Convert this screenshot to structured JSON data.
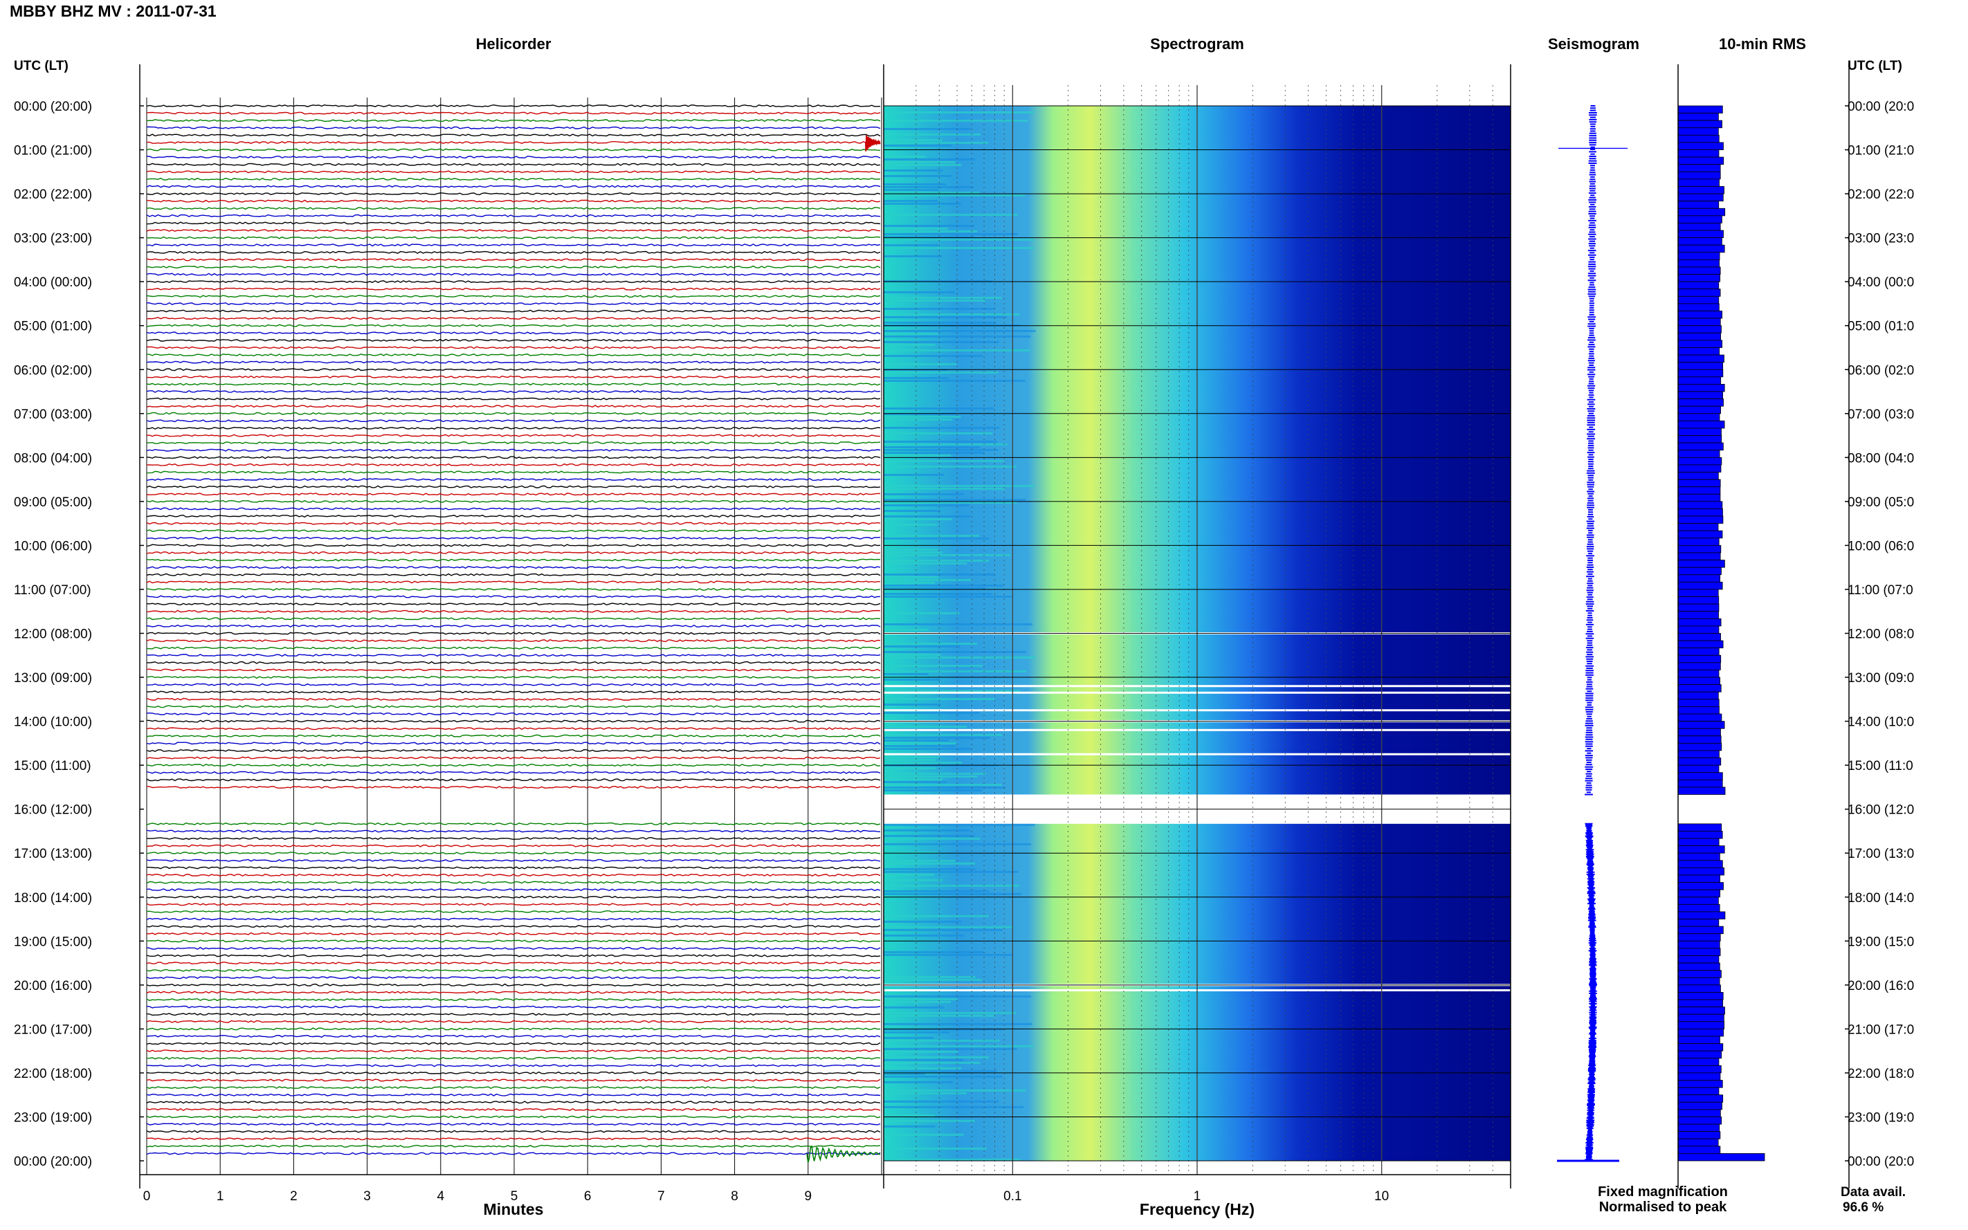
{
  "title": "MBBY BHZ MV : 2011-07-31",
  "panels": {
    "helicorder": "Helicorder",
    "spectrogram": "Spectrogram",
    "seismogram": "Seismogram",
    "rms": "10-min RMS"
  },
  "left_axis_label": "UTC (LT)",
  "right_axis_label": "UTC (LT)",
  "time_labels_left": [
    "00:00 (20:00)",
    "01:00 (21:00)",
    "02:00 (22:00)",
    "03:00 (23:00)",
    "04:00 (00:00)",
    "05:00 (01:00)",
    "06:00 (02:00)",
    "07:00 (03:00)",
    "08:00 (04:00)",
    "09:00 (05:00)",
    "10:00 (06:00)",
    "11:00 (07:00)",
    "12:00 (08:00)",
    "13:00 (09:00)",
    "14:00 (10:00)",
    "15:00 (11:00)",
    "16:00 (12:00)",
    "17:00 (13:00)",
    "18:00 (14:00)",
    "19:00 (15:00)",
    "20:00 (16:00)",
    "21:00 (17:00)",
    "22:00 (18:00)",
    "23:00 (19:00)",
    "00:00 (20:00)"
  ],
  "time_labels_right": [
    "00:00 (20:0",
    "01:00 (21:0",
    "02:00 (22:0",
    "03:00 (23:0",
    "04:00 (00:0",
    "05:00 (01:0",
    "06:00 (02:0",
    "07:00 (03:0",
    "08:00 (04:0",
    "09:00 (05:0",
    "10:00 (06:0",
    "11:00 (07:0",
    "12:00 (08:0",
    "13:00 (09:0",
    "14:00 (10:0",
    "15:00 (11:0",
    "16:00 (12:0",
    "17:00 (13:0",
    "18:00 (14:0",
    "19:00 (15:0",
    "20:00 (16:0",
    "21:00 (17:0",
    "22:00 (18:0",
    "23:00 (19:0",
    "00:00 (20:0"
  ],
  "legend": {
    "fixed": "Fixed magnification",
    "normalised": "Normalised to peak",
    "fixed_color": "#0000ff",
    "normalised_color": "#ff0000"
  },
  "data_avail": {
    "label": "Data avail.",
    "value": "96.6 %"
  },
  "colors": {
    "trace": [
      "#000000",
      "#cc0000",
      "#008000",
      "#0000cc"
    ],
    "seismogram": "#0000ff",
    "rms": "#0000ff"
  },
  "chart_data": [
    {
      "type": "line",
      "name": "Helicorder",
      "xlabel": "Minutes",
      "xlim": [
        0,
        10
      ],
      "x_ticks": [
        "0",
        "1",
        "2",
        "3",
        "4",
        "5",
        "6",
        "7",
        "8",
        "9"
      ],
      "ylabel": "UTC (LT)",
      "rows_per_hour": 6,
      "hours": 24,
      "gap": {
        "start_utc": "15:40",
        "end_utc": "16:20"
      },
      "events": [
        {
          "utc": "00:50",
          "minute": 9.8,
          "color": "#cc0000"
        },
        {
          "utc": "23:50",
          "minute": 9.0,
          "color": "#008000"
        }
      ]
    },
    {
      "type": "heatmap",
      "name": "Spectrogram",
      "xlabel": "Frequency (Hz)",
      "xscale": "log",
      "xlim": [
        0.02,
        50
      ],
      "x_ticks": [
        "0.1",
        "1",
        "10"
      ],
      "y": "time (UTC), 00:00 to 24:00",
      "gap": {
        "start_utc": "15:40",
        "end_utc": "16:20"
      }
    },
    {
      "type": "line",
      "name": "Seismogram",
      "legend": [
        "Fixed magnification",
        "Normalised to peak"
      ]
    },
    {
      "type": "bar",
      "name": "10-min RMS",
      "orientation": "horizontal",
      "gap": {
        "start_utc": "15:40",
        "end_utc": "16:20"
      },
      "peak_row_utc": "23:50"
    }
  ]
}
